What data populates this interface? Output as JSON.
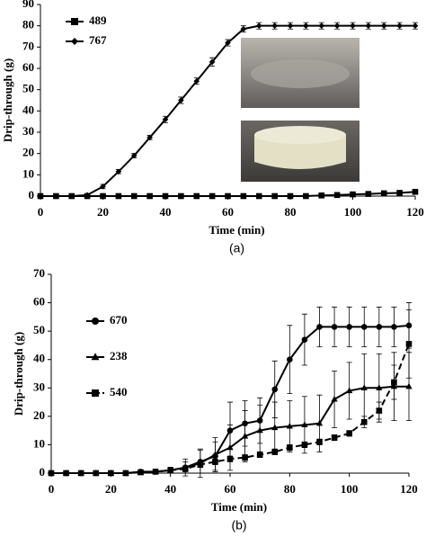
{
  "chart_data": [
    {
      "type": "line",
      "caption": "(a)",
      "x_label": "Time (min)",
      "y_label": "Drip-through (g)",
      "x": [
        0,
        5,
        10,
        15,
        20,
        25,
        30,
        35,
        40,
        45,
        50,
        55,
        60,
        65,
        70,
        75,
        80,
        85,
        90,
        95,
        100,
        105,
        110,
        115,
        120
      ],
      "xlim": [
        0,
        120
      ],
      "xticks": [
        0,
        20,
        40,
        60,
        80,
        100,
        120
      ],
      "ylim": [
        0,
        90
      ],
      "yticks": [
        0,
        10,
        20,
        30,
        40,
        50,
        60,
        70,
        80,
        90
      ],
      "series": [
        {
          "name": "489",
          "color": "#000000",
          "marker": "square",
          "dash": false,
          "values": [
            0,
            0,
            0,
            0,
            0,
            0,
            0,
            0,
            0,
            0,
            0,
            0,
            0,
            0,
            0,
            0,
            0,
            0,
            0.3,
            0.5,
            0.8,
            1,
            1.3,
            1.5,
            2
          ],
          "errors": [
            0.3,
            0.3,
            0.3,
            0.3,
            0.3,
            0.3,
            0.3,
            0.3,
            0.3,
            0.3,
            0.3,
            0.3,
            0.3,
            0.3,
            0.3,
            0.3,
            0.3,
            0.3,
            0.5,
            0.5,
            0.5,
            0.5,
            0.5,
            0.5,
            0.5
          ]
        },
        {
          "name": "767",
          "color": "#000000",
          "marker": "diamond",
          "dash": false,
          "values": [
            0,
            0,
            0,
            0.5,
            4.5,
            11.5,
            19,
            27.5,
            36,
            45,
            54,
            63,
            72,
            78.5,
            80,
            80,
            80,
            80,
            80,
            80,
            80,
            80,
            80,
            80,
            80
          ],
          "errors": [
            0.3,
            0.3,
            0.3,
            0.5,
            1,
            1,
            1,
            1,
            1.5,
            1.5,
            1.5,
            2,
            1.5,
            1.5,
            1.5,
            1.5,
            1.5,
            1.5,
            1.5,
            1.5,
            1.5,
            1.5,
            1.5,
            1.5,
            1.5
          ]
        }
      ]
    },
    {
      "type": "line",
      "caption": "(b)",
      "x_label": "Time (min)",
      "y_label": "Drip-through (g)",
      "x": [
        0,
        5,
        10,
        15,
        20,
        25,
        30,
        35,
        40,
        45,
        50,
        55,
        60,
        65,
        70,
        75,
        80,
        85,
        90,
        95,
        100,
        105,
        110,
        115,
        120
      ],
      "xlim": [
        0,
        120
      ],
      "xticks": [
        0,
        20,
        40,
        60,
        80,
        100,
        120
      ],
      "ylim": [
        0,
        70
      ],
      "yticks": [
        0,
        10,
        20,
        30,
        40,
        50,
        60,
        70
      ],
      "series": [
        {
          "name": "670",
          "color": "#000000",
          "marker": "circle",
          "dash": false,
          "values": [
            0,
            0,
            0,
            0,
            0,
            0,
            0.5,
            0.5,
            1,
            2,
            4,
            6,
            15,
            17.5,
            18.5,
            29.5,
            40,
            47,
            51.5,
            51.5,
            51.5,
            51.5,
            51.5,
            51.5,
            52
          ],
          "errors": [
            0,
            0,
            0,
            0,
            0,
            0,
            0.5,
            0.5,
            1,
            2,
            4,
            5,
            10,
            8,
            8,
            10,
            12,
            9,
            7,
            7,
            7,
            7,
            7,
            7,
            8
          ]
        },
        {
          "name": "238",
          "color": "#000000",
          "marker": "triangle",
          "dash": false,
          "values": [
            0,
            0,
            0,
            0,
            0,
            0,
            0.3,
            0.5,
            1,
            2,
            3.5,
            6.5,
            9,
            13,
            15,
            16,
            16.5,
            17,
            17.5,
            26,
            29,
            30,
            30,
            30.5,
            30.5
          ],
          "errors": [
            0,
            0,
            0,
            0,
            0,
            0,
            0.3,
            0.5,
            1,
            3,
            5,
            6,
            8,
            9,
            9,
            9,
            9,
            10,
            10,
            10,
            10,
            12,
            12,
            12,
            12
          ]
        },
        {
          "name": "540",
          "color": "#000000",
          "marker": "square",
          "dash": true,
          "values": [
            0,
            0,
            0,
            0,
            0,
            0,
            0.3,
            0.5,
            1,
            1.5,
            3,
            4,
            5,
            5.5,
            6.5,
            7.5,
            9,
            10,
            11,
            12.5,
            14,
            18,
            22,
            32,
            45.5
          ],
          "errors": [
            0,
            0,
            0,
            0,
            0,
            0,
            0.3,
            0.5,
            1,
            1,
            1,
            1,
            1,
            1,
            1,
            1,
            1,
            1,
            1,
            1,
            1,
            2,
            3,
            6,
            12
          ]
        }
      ]
    }
  ]
}
